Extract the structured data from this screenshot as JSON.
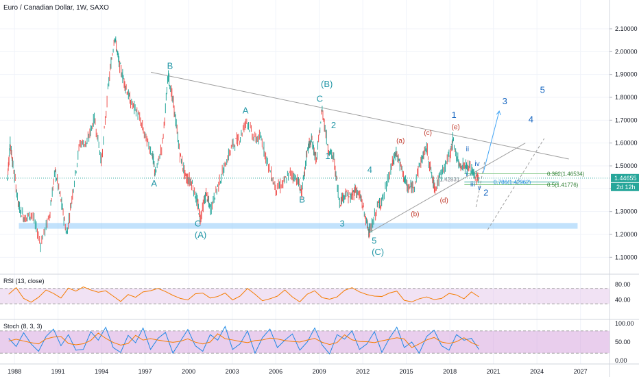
{
  "chart_data": {
    "type": "line",
    "title": "Euro / Canadian Dollar, 1W, SAXO",
    "series": [
      {
        "values": [
          [
            1987.5,
            1.44
          ],
          [
            1987.7,
            1.6
          ],
          [
            1987.9,
            1.5
          ],
          [
            1988.3,
            1.32
          ],
          [
            1988.7,
            1.27
          ],
          [
            1989.2,
            1.29
          ],
          [
            1989.8,
            1.16
          ],
          [
            1990.4,
            1.28
          ],
          [
            1990.8,
            1.48
          ],
          [
            1991.2,
            1.35
          ],
          [
            1991.6,
            1.2
          ],
          [
            1992.0,
            1.38
          ],
          [
            1992.5,
            1.6
          ],
          [
            1993.0,
            1.6
          ],
          [
            1993.5,
            1.71
          ],
          [
            1994.0,
            1.52
          ],
          [
            1994.5,
            1.87
          ],
          [
            1994.9,
            2.07
          ],
          [
            1995.2,
            1.95
          ],
          [
            1995.6,
            1.86
          ],
          [
            1996.0,
            1.78
          ],
          [
            1996.5,
            1.73
          ],
          [
            1997.0,
            1.63
          ],
          [
            1997.5,
            1.55
          ],
          [
            1997.7,
            1.46
          ],
          [
            1998.2,
            1.6
          ],
          [
            1998.6,
            1.9
          ],
          [
            1999.0,
            1.75
          ],
          [
            1999.4,
            1.55
          ],
          [
            1999.8,
            1.45
          ],
          [
            2000.2,
            1.43
          ],
          [
            2000.6,
            1.34
          ],
          [
            2000.8,
            1.27
          ],
          [
            2001.2,
            1.38
          ],
          [
            2001.5,
            1.31
          ],
          [
            2002.0,
            1.41
          ],
          [
            2002.5,
            1.5
          ],
          [
            2003.0,
            1.59
          ],
          [
            2003.5,
            1.62
          ],
          [
            2004.0,
            1.7
          ],
          [
            2004.5,
            1.62
          ],
          [
            2005.0,
            1.62
          ],
          [
            2005.5,
            1.5
          ],
          [
            2006.0,
            1.4
          ],
          [
            2006.5,
            1.42
          ],
          [
            2007.0,
            1.47
          ],
          [
            2007.5,
            1.44
          ],
          [
            2007.8,
            1.38
          ],
          [
            2008.2,
            1.58
          ],
          [
            2008.5,
            1.61
          ],
          [
            2008.8,
            1.52
          ],
          [
            2009.2,
            1.75
          ],
          [
            2009.6,
            1.58
          ],
          [
            2010.0,
            1.53
          ],
          [
            2010.4,
            1.34
          ],
          [
            2010.8,
            1.38
          ],
          [
            2011.2,
            1.36
          ],
          [
            2011.5,
            1.4
          ],
          [
            2011.9,
            1.35
          ],
          [
            2012.3,
            1.24
          ],
          [
            2012.5,
            1.21
          ],
          [
            2013.0,
            1.32
          ],
          [
            2013.4,
            1.36
          ],
          [
            2014.0,
            1.5
          ],
          [
            2014.3,
            1.56
          ],
          [
            2014.7,
            1.48
          ],
          [
            2015.1,
            1.4
          ],
          [
            2015.5,
            1.41
          ],
          [
            2016.0,
            1.52
          ],
          [
            2016.4,
            1.58
          ],
          [
            2016.8,
            1.44
          ],
          [
            2017.0,
            1.4
          ],
          [
            2017.5,
            1.48
          ],
          [
            2018.0,
            1.55
          ],
          [
            2018.2,
            1.61
          ],
          [
            2018.6,
            1.51
          ],
          [
            2019.0,
            1.5
          ],
          [
            2019.4,
            1.49
          ],
          [
            2019.8,
            1.45
          ],
          [
            2020.0,
            1.446
          ]
        ]
      }
    ],
    "xlabel": "",
    "ylabel": "",
    "xlim": [
      1987.0,
      2029.0
    ],
    "ylim": [
      1.05,
      2.16
    ],
    "x_ticks": [
      "1988",
      "1991",
      "1994",
      "1997",
      "2000",
      "2003",
      "2006",
      "2009",
      "2012",
      "2015",
      "2018",
      "2021",
      "2024",
      "2027"
    ],
    "y_ticks": [
      "2.10000",
      "2.00000",
      "1.90000",
      "1.80000",
      "1.70000",
      "1.60000",
      "1.50000",
      "1.40000",
      "1.30000",
      "1.20000",
      "1.10000"
    ],
    "last_price": "1.44655",
    "countdown": "2d 12h",
    "line_color": "#26a69a",
    "down_color": "#ef5350",
    "wave_labels": [
      {
        "text": "B",
        "x": 1998.7,
        "y": 1.925,
        "color": "#2196a6"
      },
      {
        "text": "A",
        "x": 1997.6,
        "y": 1.41,
        "color": "#2196a6"
      },
      {
        "text": "C",
        "x": 2000.6,
        "y": 1.235,
        "color": "#2196a6"
      },
      {
        "text": "(A)",
        "x": 2000.6,
        "y": 1.185,
        "color": "#2196a6"
      },
      {
        "text": "A",
        "x": 2003.9,
        "y": 1.73,
        "color": "#2196a6"
      },
      {
        "text": "B",
        "x": 2007.8,
        "y": 1.34,
        "color": "#2196a6"
      },
      {
        "text": "(B)",
        "x": 2009.3,
        "y": 1.845,
        "color": "#2196a6"
      },
      {
        "text": "C",
        "x": 2009.0,
        "y": 1.78,
        "color": "#2196a6"
      },
      {
        "text": "2",
        "x": 2010.0,
        "y": 1.665,
        "color": "#2196a6"
      },
      {
        "text": "1",
        "x": 2009.6,
        "y": 1.53,
        "color": "#2196a6"
      },
      {
        "text": "4",
        "x": 2012.5,
        "y": 1.47,
        "color": "#2196a6"
      },
      {
        "text": "3",
        "x": 2010.6,
        "y": 1.235,
        "color": "#2196a6"
      },
      {
        "text": "5",
        "x": 2012.8,
        "y": 1.16,
        "color": "#2196a6"
      },
      {
        "text": "(C)",
        "x": 2012.8,
        "y": 1.11,
        "color": "#2196a6"
      },
      {
        "text": "(a)",
        "x": 2014.5,
        "y": 1.6,
        "color": "#c0392b"
      },
      {
        "text": "(b)",
        "x": 2015.5,
        "y": 1.28,
        "color": "#c0392b"
      },
      {
        "text": "(c)",
        "x": 2016.4,
        "y": 1.635,
        "color": "#c0392b"
      },
      {
        "text": "(d)",
        "x": 2017.5,
        "y": 1.34,
        "color": "#c0392b"
      },
      {
        "text": "(e)",
        "x": 2018.3,
        "y": 1.66,
        "color": "#c0392b"
      },
      {
        "text": "1",
        "x": 2018.3,
        "y": 1.71,
        "color": "#1565c0"
      },
      {
        "text": "ii",
        "x": 2019.3,
        "y": 1.565,
        "color": "#1565c0"
      },
      {
        "text": "iv",
        "x": 2019.9,
        "y": 1.5,
        "color": "#1565c0"
      },
      {
        "text": "i",
        "x": 2019.3,
        "y": 1.455,
        "color": "#1565c0"
      },
      {
        "text": "iii",
        "x": 2019.6,
        "y": 1.41,
        "color": "#1565c0"
      },
      {
        "text": "v",
        "x": 2020.1,
        "y": 1.395,
        "color": "#1565c0"
      },
      {
        "text": "2",
        "x": 2020.5,
        "y": 1.37,
        "color": "#1565c0"
      },
      {
        "text": "3",
        "x": 2021.8,
        "y": 1.77,
        "color": "#1565c0"
      },
      {
        "text": "4",
        "x": 2023.6,
        "y": 1.69,
        "color": "#1565c0"
      },
      {
        "text": "5",
        "x": 2024.4,
        "y": 1.82,
        "color": "#1565c0"
      }
    ],
    "fib_levels": [
      {
        "label": "0.382(1.46534)",
        "value": 1.46534
      },
      {
        "label": "0.786(1.42962)",
        "value": 1.42962
      },
      {
        "label": "0.5(1.41776)",
        "value": 1.41776
      }
    ],
    "fib_anchor_label": "1.42831",
    "support_zone": [
      1.225,
      1.25
    ],
    "indicators": [
      {
        "name": "RSI (13, close)",
        "ticks": [
          "80.00",
          "40.00"
        ],
        "range": [
          0,
          100
        ],
        "band": [
          30,
          70
        ],
        "values": [
          55,
          72,
          44,
          34,
          47,
          66,
          57,
          45,
          71,
          63,
          74,
          66,
          60,
          64,
          50,
          36,
          54,
          47,
          61,
          64,
          70,
          62,
          52,
          44,
          40,
          56,
          58,
          45,
          49,
          58,
          40,
          50,
          70,
          55,
          38,
          43,
          50,
          66,
          48,
          35,
          55,
          64,
          46,
          42,
          48,
          65,
          72,
          61,
          54,
          50,
          49,
          58,
          63,
          39,
          35,
          43,
          48,
          41,
          44,
          57,
          53,
          43,
          61,
          48
        ]
      },
      {
        "name": "Stoch (8, 3, 3)",
        "ticks": [
          "100.00",
          "50.00",
          "0.00"
        ],
        "range": [
          0,
          100
        ],
        "band": [
          20,
          80
        ],
        "values": [
          60,
          38,
          75,
          45,
          25,
          65,
          85,
          40,
          70,
          28,
          30,
          78,
          55,
          90,
          35,
          22,
          68,
          48,
          88,
          30,
          60,
          76,
          20,
          52,
          84,
          40,
          25,
          70,
          55,
          92,
          30,
          45,
          80,
          20,
          62,
          85,
          35,
          55,
          72,
          28,
          50,
          88,
          42,
          18,
          70,
          58,
          80,
          30,
          45,
          78,
          22,
          60,
          90,
          35,
          50,
          20,
          65,
          82,
          40,
          28,
          70,
          55,
          60,
          30
        ]
      }
    ]
  }
}
